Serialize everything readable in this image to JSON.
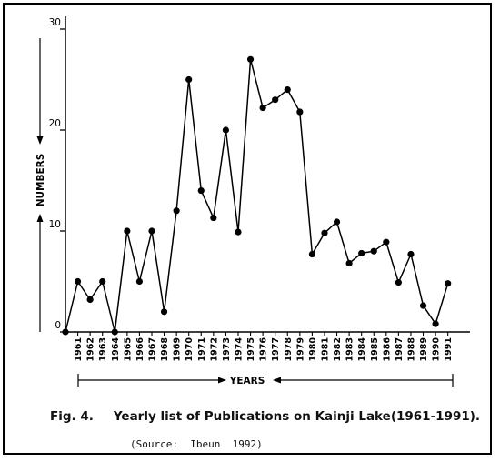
{
  "chart_data": {
    "type": "line",
    "xlabel": "YEARS",
    "ylabel": "NUMBERS",
    "ylim": [
      0,
      30
    ],
    "yticks": [
      0,
      10,
      20,
      30
    ],
    "grid": false,
    "legend": "none",
    "categories": [
      "1961",
      "1962",
      "1963",
      "1964",
      "1965",
      "1966",
      "1967",
      "1968",
      "1969",
      "1970",
      "1971",
      "1972",
      "1973",
      "1974",
      "1975",
      "1976",
      "1977",
      "1978",
      "1979",
      "1980",
      "1981",
      "1982",
      "1983",
      "1984",
      "1985",
      "1986",
      "1987",
      "1988",
      "1989",
      "1990",
      "1991"
    ],
    "series": [
      {
        "x": [
          "",
          "1961",
          "1962",
          "1963",
          "1964",
          "1965",
          "1966",
          "1967",
          "1968",
          "1969",
          "1970",
          "1971",
          "1972",
          "1973",
          "1974",
          "1975",
          "1976",
          "1977",
          "1978",
          "1979",
          "1980",
          "1981",
          "1982",
          "1983",
          "1984",
          "1985",
          "1986",
          "1987",
          "1988",
          "1989",
          "1990",
          "1991"
        ],
        "values": [
          0,
          5,
          3.2,
          5,
          0,
          10,
          5,
          10,
          2,
          12,
          25,
          14,
          11.3,
          20,
          9.9,
          27,
          22.2,
          23,
          24,
          21.8,
          7.7,
          9.8,
          10.9,
          6.8,
          7.8,
          8,
          8.9,
          4.9,
          7.7,
          2.6,
          0.8,
          4.8
        ]
      }
    ],
    "color": "#000000"
  },
  "caption": {
    "fig_label": "Fig. 4.",
    "title": "Yearly list of Publications on Kainji Lake(1961-1991).",
    "source": "(Source:  Ibeun  1992)"
  }
}
